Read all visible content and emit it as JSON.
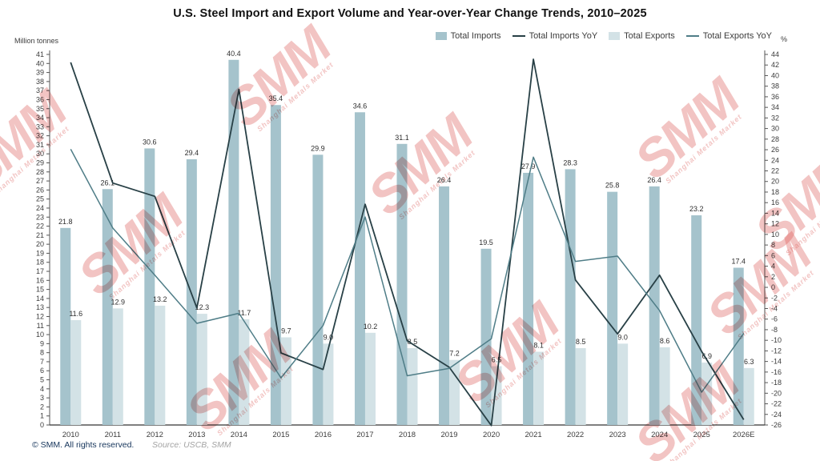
{
  "title": "U.S. Steel Import and Export Volume and Year-over-Year Change Trends, 2010–2025",
  "left_axis_unit": "Million tonnes",
  "right_axis_unit": "%",
  "legend": [
    {
      "label": "Total Imports",
      "type": "bar",
      "color": "#a5c3cc"
    },
    {
      "label": "Total Imports YoY",
      "type": "line",
      "color": "#284046"
    },
    {
      "label": "Total Exports",
      "type": "bar",
      "color": "#d3e2e6"
    },
    {
      "label": "Total Exports YoY",
      "type": "line",
      "color": "#4f7d87"
    }
  ],
  "watermark": {
    "text": "SMM",
    "subtext": "Shanghai Metals Market",
    "color": "#d9534f"
  },
  "footer": {
    "copyright": "© SMM. All rights reserved.",
    "source": "Source: USCB, SMM"
  },
  "chart_data": {
    "type": "bar",
    "subtype": "grouped bars with dual-axis YoY lines",
    "categories": [
      "2010",
      "2011",
      "2012",
      "2013",
      "2014",
      "2015",
      "2016",
      "2017",
      "2018",
      "2019",
      "2020",
      "2021",
      "2022",
      "2023",
      "2024",
      "2025",
      "2026E"
    ],
    "left_axis": {
      "min": 0,
      "max": 41,
      "step": 1,
      "label": "Million tonnes"
    },
    "right_axis": {
      "min": -26,
      "max": 44,
      "step": 2,
      "label": "%"
    },
    "grid": false,
    "legend_position": "top-right",
    "series": [
      {
        "name": "Total Imports",
        "type": "bar",
        "axis": "left",
        "color": "#a5c3cc",
        "values": [
          21.8,
          26.1,
          30.6,
          29.4,
          40.4,
          35.4,
          29.9,
          34.6,
          31.1,
          26.4,
          19.5,
          27.9,
          28.3,
          25.8,
          26.4,
          23.2,
          17.4
        ]
      },
      {
        "name": "Total Imports YoY",
        "type": "line",
        "axis": "right",
        "color": "#284046",
        "values": [
          42.5,
          19.7,
          17.2,
          -3.9,
          37.4,
          -12.4,
          -15.5,
          15.7,
          -10.1,
          -15.1,
          -26.1,
          43.1,
          1.4,
          -8.8,
          2.3,
          -12.1,
          -25.0
        ]
      },
      {
        "name": "Total Exports",
        "type": "bar",
        "axis": "left",
        "color": "#d3e2e6",
        "values": [
          11.6,
          12.9,
          13.2,
          12.3,
          11.7,
          9.7,
          9.0,
          10.2,
          8.5,
          7.2,
          6.5,
          8.1,
          8.5,
          9.0,
          8.6,
          6.9,
          6.3
        ]
      },
      {
        "name": "Total Exports YoY",
        "type": "line",
        "axis": "right",
        "color": "#4f7d87",
        "values": [
          26.1,
          11.2,
          2.3,
          -6.8,
          -4.9,
          -17.1,
          -7.2,
          13.3,
          -16.7,
          -15.3,
          -9.7,
          24.6,
          4.9,
          5.9,
          -4.4,
          -19.8,
          -8.7
        ]
      }
    ]
  }
}
